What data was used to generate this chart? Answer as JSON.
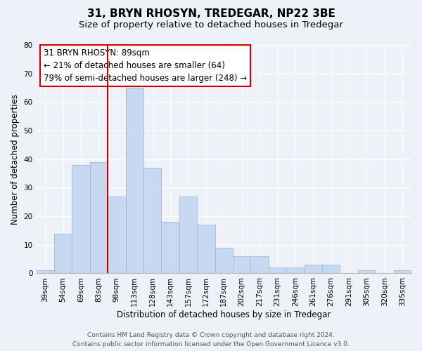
{
  "title": "31, BRYN RHOSYN, TREDEGAR, NP22 3BE",
  "subtitle": "Size of property relative to detached houses in Tredegar",
  "xlabel": "Distribution of detached houses by size in Tredegar",
  "ylabel": "Number of detached properties",
  "bar_labels": [
    "39sqm",
    "54sqm",
    "69sqm",
    "83sqm",
    "98sqm",
    "113sqm",
    "128sqm",
    "143sqm",
    "157sqm",
    "172sqm",
    "187sqm",
    "202sqm",
    "217sqm",
    "231sqm",
    "246sqm",
    "261sqm",
    "276sqm",
    "291sqm",
    "305sqm",
    "320sqm",
    "335sqm"
  ],
  "bar_values": [
    1,
    14,
    38,
    39,
    27,
    65,
    37,
    18,
    27,
    17,
    9,
    6,
    6,
    2,
    2,
    3,
    3,
    0,
    1,
    0,
    1
  ],
  "bar_color": "#c6d9f0",
  "bar_edge_color": "#a0b8d8",
  "vline_color": "#cc0000",
  "annotation_title": "31 BRYN RHOSYN: 89sqm",
  "annotation_line1": "← 21% of detached houses are smaller (64)",
  "annotation_line2": "79% of semi-detached houses are larger (248) →",
  "annotation_box_color": "#ffffff",
  "annotation_box_edge": "#cc0000",
  "ylim": [
    0,
    80
  ],
  "yticks": [
    0,
    10,
    20,
    30,
    40,
    50,
    60,
    70,
    80
  ],
  "footer_line1": "Contains HM Land Registry data © Crown copyright and database right 2024.",
  "footer_line2": "Contains public sector information licensed under the Open Government Licence v3.0.",
  "background_color": "#eef2f8",
  "grid_color": "#ffffff",
  "title_fontsize": 11,
  "subtitle_fontsize": 9.5,
  "axis_label_fontsize": 8.5,
  "tick_fontsize": 7.5,
  "annotation_fontsize": 8.5,
  "footer_fontsize": 6.5
}
